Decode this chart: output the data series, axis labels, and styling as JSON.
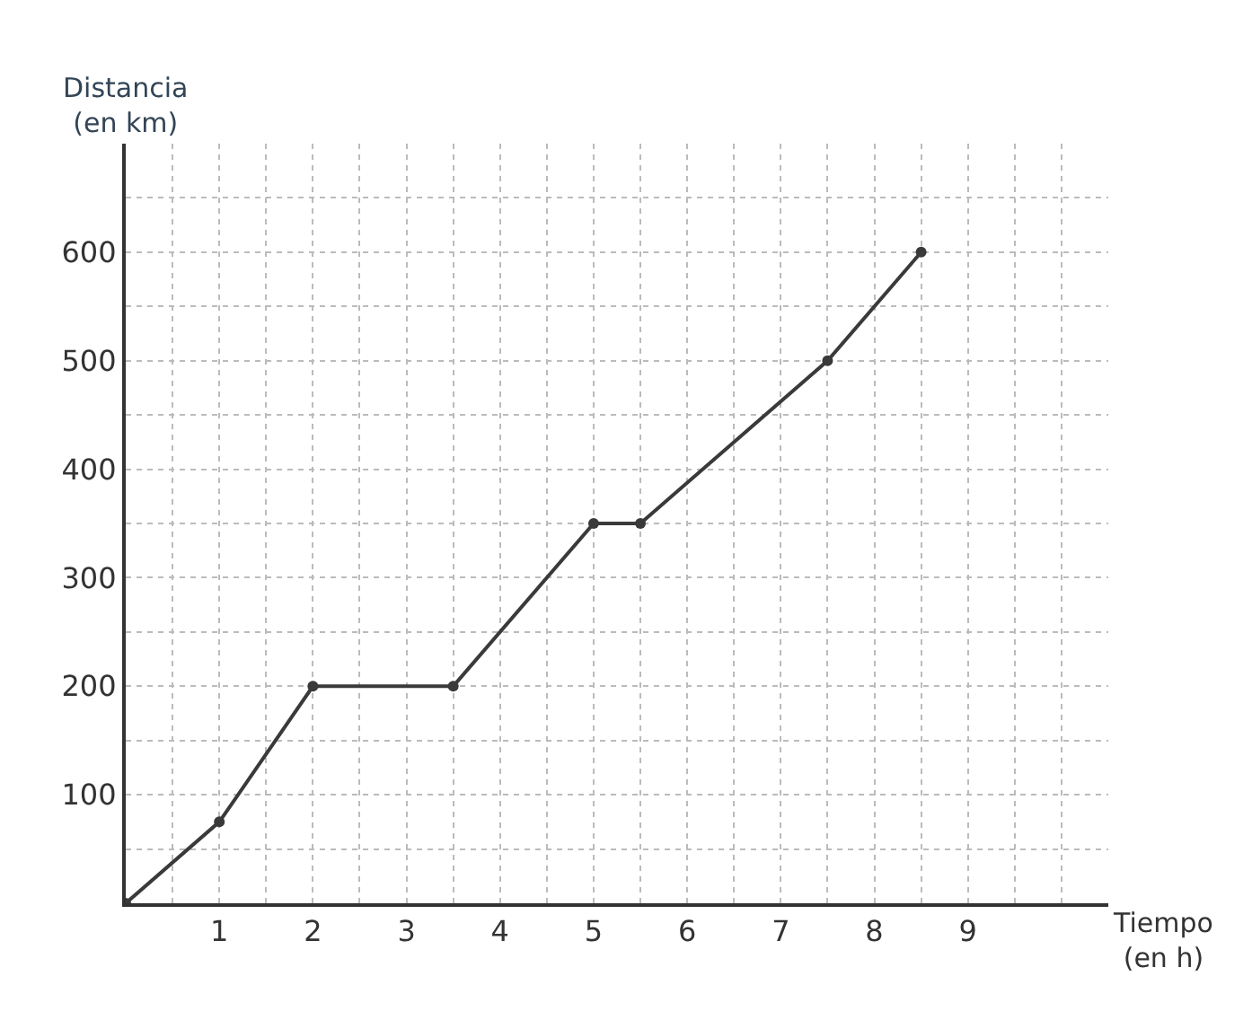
{
  "chart_data": {
    "type": "line",
    "xlabel": "Tiempo\n(en h)",
    "ylabel": "Distancia\n(en km)",
    "x": [
      0,
      1,
      2,
      3.5,
      5,
      5.5,
      7.5,
      8.5
    ],
    "series": [
      {
        "color": "#3a3a3a",
        "values": [
          0,
          75,
          200,
          200,
          350,
          350,
          500,
          600
        ]
      }
    ],
    "xlim": [
      0,
      10.5
    ],
    "ylim": [
      0,
      700
    ],
    "xticks": [
      {
        "value": 0.5,
        "label": null
      },
      1,
      {
        "value": 1.5,
        "label": null
      },
      2,
      {
        "value": 2.5,
        "label": null
      },
      3,
      {
        "value": 3.5,
        "label": null
      },
      4,
      {
        "value": 4.5,
        "label": null
      },
      5,
      {
        "value": 5.5,
        "label": null
      },
      6,
      {
        "value": 6.5,
        "label": null
      },
      7,
      {
        "value": 7.5,
        "label": null
      },
      8,
      {
        "value": 8.5,
        "label": null
      },
      9,
      {
        "value": 9.5,
        "label": null
      },
      {
        "value": 10,
        "label": null
      }
    ],
    "yticks": [
      {
        "value": 50,
        "label": null
      },
      100,
      {
        "value": 150,
        "label": null
      },
      200,
      {
        "value": 250,
        "label": null
      },
      300,
      {
        "value": 350,
        "label": null
      },
      400,
      {
        "value": 450,
        "label": null
      },
      500,
      {
        "value": 550,
        "label": null
      },
      600,
      {
        "value": 650,
        "label": null
      }
    ],
    "grid": true,
    "marker": "circle",
    "line_style": "solid"
  }
}
